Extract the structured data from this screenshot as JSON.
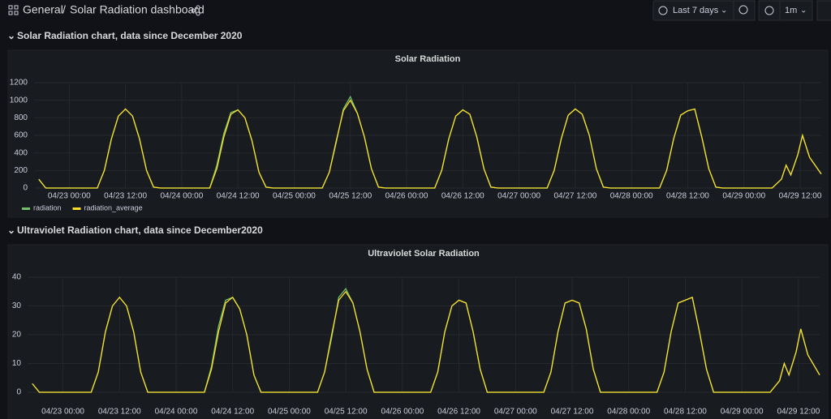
{
  "header": {
    "folder": "General",
    "title": "Solar Radiation dashboard",
    "time_range": "Last 7 days",
    "refresh": "1m"
  },
  "rows": [
    {
      "title": "Solar Radiation chart, data since December 2020"
    },
    {
      "title": "Ultraviolet Radiation chart, data since December2020"
    }
  ],
  "chart_data": [
    {
      "type": "line",
      "title": "Solar Radiation",
      "grid": true,
      "legend": "bottom-left",
      "x": [
        "04/22 17:30",
        "04/22 19:00",
        "04/23 06:00",
        "04/23 07:30",
        "04/23 09:00",
        "04/23 10:30",
        "04/23 12:00",
        "04/23 13:30",
        "04/23 15:00",
        "04/23 16:30",
        "04/23 18:00",
        "04/23 19:30",
        "04/24 06:00",
        "04/24 07:30",
        "04/24 09:00",
        "04/24 10:30",
        "04/24 12:00",
        "04/24 13:30",
        "04/24 15:00",
        "04/24 16:30",
        "04/24 18:00",
        "04/24 19:30",
        "04/25 06:00",
        "04/25 07:30",
        "04/25 09:00",
        "04/25 10:30",
        "04/25 12:00",
        "04/25 13:30",
        "04/25 15:00",
        "04/25 16:30",
        "04/25 18:00",
        "04/25 19:30",
        "04/26 06:00",
        "04/26 07:30",
        "04/26 09:00",
        "04/26 10:30",
        "04/26 12:00",
        "04/26 13:30",
        "04/26 15:00",
        "04/26 16:30",
        "04/26 18:00",
        "04/26 19:30",
        "04/27 06:00",
        "04/27 07:30",
        "04/27 09:00",
        "04/27 10:30",
        "04/27 12:00",
        "04/27 13:30",
        "04/27 15:00",
        "04/27 16:30",
        "04/27 18:00",
        "04/27 19:30",
        "04/28 06:00",
        "04/28 07:30",
        "04/28 09:00",
        "04/28 10:30",
        "04/28 12:00",
        "04/28 13:30",
        "04/28 15:00",
        "04/28 16:30",
        "04/28 18:00",
        "04/28 19:30",
        "04/29 06:00",
        "04/29 08:00",
        "04/29 09:00",
        "04/29 10:00",
        "04/29 11:30",
        "04/29 12:30",
        "04/29 14:00",
        "04/29 16:30"
      ],
      "series": [
        {
          "name": "radiation",
          "color": "#73bf69",
          "values": [
            100,
            0,
            0,
            200,
            560,
            820,
            900,
            820,
            560,
            200,
            10,
            0,
            0,
            260,
            620,
            860,
            890,
            800,
            540,
            180,
            10,
            0,
            0,
            180,
            520,
            900,
            1040,
            850,
            580,
            220,
            10,
            0,
            0,
            200,
            560,
            820,
            890,
            840,
            580,
            220,
            10,
            0,
            0,
            200,
            560,
            830,
            900,
            840,
            600,
            220,
            10,
            0,
            0,
            200,
            560,
            830,
            880,
            900,
            580,
            220,
            10,
            0,
            0,
            100,
            260,
            150,
            380,
            600,
            350,
            160
          ]
        },
        {
          "name": "radiation_average",
          "color": "#fade2a",
          "values": [
            100,
            0,
            0,
            200,
            560,
            820,
            900,
            820,
            560,
            200,
            10,
            0,
            0,
            220,
            580,
            840,
            890,
            800,
            540,
            180,
            10,
            0,
            0,
            180,
            540,
            880,
            1000,
            850,
            580,
            220,
            10,
            0,
            0,
            200,
            560,
            820,
            890,
            840,
            580,
            220,
            10,
            0,
            0,
            200,
            560,
            830,
            900,
            840,
            600,
            220,
            10,
            0,
            0,
            200,
            560,
            830,
            880,
            900,
            580,
            220,
            10,
            0,
            0,
            100,
            260,
            150,
            380,
            600,
            350,
            160
          ]
        }
      ],
      "xlim": [
        "04/22 16:30",
        "04/29 16:30"
      ],
      "ylim": [
        0,
        1200
      ],
      "yticks": [
        0,
        200,
        400,
        600,
        800,
        1000,
        1200
      ],
      "xticks": [
        "04/23 00:00",
        "04/23 12:00",
        "04/24 00:00",
        "04/24 12:00",
        "04/25 00:00",
        "04/25 12:00",
        "04/26 00:00",
        "04/26 12:00",
        "04/27 00:00",
        "04/27 12:00",
        "04/28 00:00",
        "04/28 12:00",
        "04/29 00:00",
        "04/29 12:00"
      ]
    },
    {
      "type": "line",
      "title": "Ultraviolet Solar Radiation",
      "grid": true,
      "x": [
        "04/22 17:30",
        "04/22 19:00",
        "04/23 06:00",
        "04/23 07:30",
        "04/23 09:00",
        "04/23 10:30",
        "04/23 12:00",
        "04/23 13:30",
        "04/23 15:00",
        "04/23 16:30",
        "04/23 18:00",
        "04/23 19:30",
        "04/24 06:00",
        "04/24 07:30",
        "04/24 09:00",
        "04/24 10:30",
        "04/24 12:00",
        "04/24 13:30",
        "04/24 15:00",
        "04/24 16:30",
        "04/24 18:00",
        "04/24 19:30",
        "04/25 06:00",
        "04/25 07:30",
        "04/25 09:00",
        "04/25 10:30",
        "04/25 12:00",
        "04/25 13:30",
        "04/25 15:00",
        "04/25 16:30",
        "04/25 18:00",
        "04/25 19:30",
        "04/26 06:00",
        "04/26 07:30",
        "04/26 09:00",
        "04/26 10:30",
        "04/26 12:00",
        "04/26 13:30",
        "04/26 15:00",
        "04/26 16:30",
        "04/26 18:00",
        "04/26 19:30",
        "04/27 06:00",
        "04/27 07:30",
        "04/27 09:00",
        "04/27 10:30",
        "04/27 12:00",
        "04/27 13:30",
        "04/27 15:00",
        "04/27 16:30",
        "04/27 18:00",
        "04/27 19:30",
        "04/28 06:00",
        "04/28 07:30",
        "04/28 09:00",
        "04/28 10:30",
        "04/28 12:00",
        "04/28 13:30",
        "04/28 15:00",
        "04/28 16:30",
        "04/28 18:00",
        "04/28 19:30",
        "04/29 06:00",
        "04/29 08:00",
        "04/29 09:00",
        "04/29 10:00",
        "04/29 11:30",
        "04/29 12:30",
        "04/29 14:00",
        "04/29 16:30"
      ],
      "series": [
        {
          "color": "#73bf69",
          "values": [
            3,
            0,
            0,
            7,
            21,
            30,
            33,
            30,
            21,
            7,
            0,
            0,
            0,
            9,
            23,
            32,
            33,
            29,
            20,
            6,
            0,
            0,
            0,
            7,
            19,
            33,
            36,
            31,
            21,
            8,
            0,
            0,
            0,
            7,
            21,
            30,
            32,
            31,
            21,
            8,
            0,
            0,
            0,
            7,
            21,
            31,
            32,
            31,
            22,
            8,
            0,
            0,
            0,
            7,
            21,
            31,
            32,
            33,
            21,
            8,
            0,
            0,
            0,
            4,
            10,
            6,
            14,
            22,
            13,
            6
          ]
        },
        {
          "color": "#fade2a",
          "values": [
            3,
            0,
            0,
            7,
            21,
            30,
            33,
            30,
            21,
            7,
            0,
            0,
            0,
            8,
            21,
            31,
            33,
            29,
            20,
            6,
            0,
            0,
            0,
            7,
            20,
            32,
            35,
            31,
            21,
            8,
            0,
            0,
            0,
            7,
            21,
            30,
            32,
            31,
            21,
            8,
            0,
            0,
            0,
            7,
            21,
            31,
            32,
            31,
            22,
            8,
            0,
            0,
            0,
            7,
            21,
            31,
            32,
            33,
            21,
            8,
            0,
            0,
            0,
            4,
            10,
            6,
            14,
            22,
            13,
            6
          ]
        }
      ],
      "xlim": [
        "04/22 16:30",
        "04/29 16:30"
      ],
      "ylim": [
        0,
        40
      ],
      "yticks": [
        0,
        10,
        20,
        30,
        40
      ],
      "xticks": [
        "04/23 00:00",
        "04/23 12:00",
        "04/24 00:00",
        "04/24 12:00",
        "04/25 00:00",
        "04/25 12:00",
        "04/26 00:00",
        "04/26 12:00",
        "04/27 00:00",
        "04/27 12:00",
        "04/28 00:00",
        "04/28 12:00",
        "04/29 00:00",
        "04/29 12:00"
      ]
    }
  ]
}
